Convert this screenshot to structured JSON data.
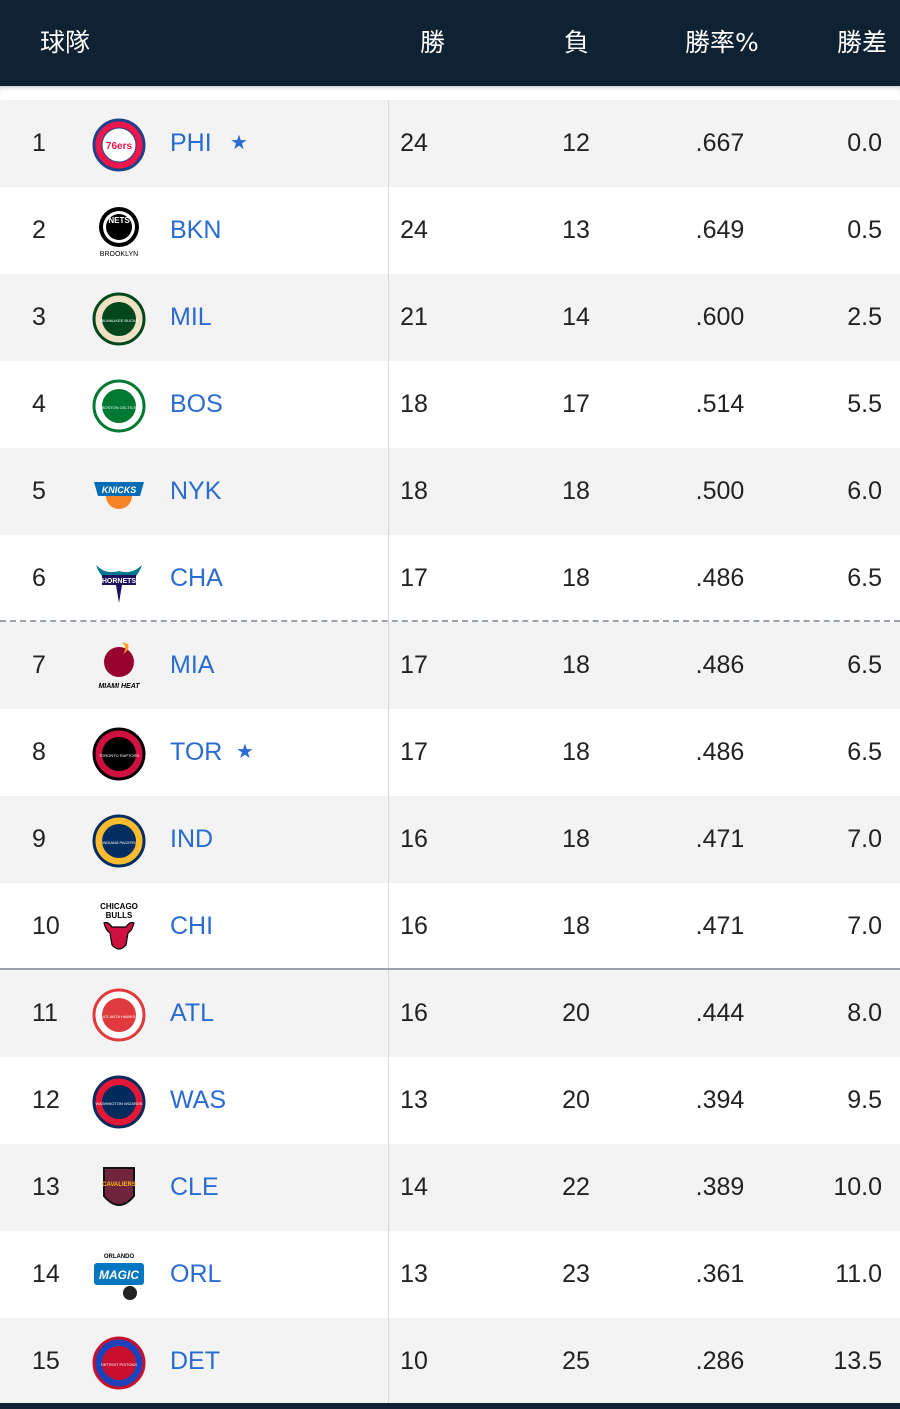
{
  "header": {
    "team_label": "球隊",
    "wins_label": "勝",
    "losses_label": "負",
    "pct_label": "勝率%",
    "gb_label": "勝差"
  },
  "colors": {
    "header_bg": "#0f2233",
    "link_blue": "#2a6bd1",
    "alt_row": "#f3f3f3"
  },
  "teams": [
    {
      "rank": "1",
      "abbr": "PHI",
      "star": true,
      "w": "24",
      "l": "12",
      "pct": ".667",
      "gb": "0.0",
      "logo": "philadelphia-76ers-logo",
      "logo_colors": [
        "#1d428a",
        "#ed174c"
      ],
      "logo_text": "76ers"
    },
    {
      "rank": "2",
      "abbr": "BKN",
      "star": false,
      "w": "24",
      "l": "13",
      "pct": ".649",
      "gb": "0.5",
      "logo": "brooklyn-nets-logo",
      "logo_colors": [
        "#000000",
        "#ffffff"
      ],
      "logo_text": "NETS",
      "logo_subtext": "BROOKLYN"
    },
    {
      "rank": "3",
      "abbr": "MIL",
      "star": false,
      "w": "21",
      "l": "14",
      "pct": ".600",
      "gb": "2.5",
      "logo": "milwaukee-bucks-logo",
      "logo_colors": [
        "#00471b",
        "#eee1c6"
      ],
      "logo_text": "MILWAUKEE BUCKS"
    },
    {
      "rank": "4",
      "abbr": "BOS",
      "star": false,
      "w": "18",
      "l": "17",
      "pct": ".514",
      "gb": "5.5",
      "logo": "boston-celtics-logo",
      "logo_colors": [
        "#007a33",
        "#ffffff"
      ],
      "logo_text": "BOSTON CELTICS"
    },
    {
      "rank": "5",
      "abbr": "NYK",
      "star": false,
      "w": "18",
      "l": "18",
      "pct": ".500",
      "gb": "6.0",
      "logo": "new-york-knicks-logo",
      "logo_colors": [
        "#006bb6",
        "#f58426"
      ],
      "logo_text": "KNICKS"
    },
    {
      "rank": "6",
      "abbr": "CHA",
      "star": false,
      "w": "17",
      "l": "18",
      "pct": ".486",
      "gb": "6.5",
      "logo": "charlotte-hornets-logo",
      "logo_colors": [
        "#1d1160",
        "#00788c"
      ],
      "logo_text": "HORNETS"
    },
    {
      "rank": "7",
      "abbr": "MIA",
      "star": false,
      "w": "17",
      "l": "18",
      "pct": ".486",
      "gb": "6.5",
      "logo": "miami-heat-logo",
      "logo_colors": [
        "#98002e",
        "#f9a01b"
      ],
      "logo_text": "MIAMI HEAT"
    },
    {
      "rank": "8",
      "abbr": "TOR",
      "star": true,
      "w": "17",
      "l": "18",
      "pct": ".486",
      "gb": "6.5",
      "logo": "toronto-raptors-logo",
      "logo_colors": [
        "#000000",
        "#ce1141"
      ],
      "logo_text": "TORONTO RAPTORS"
    },
    {
      "rank": "9",
      "abbr": "IND",
      "star": false,
      "w": "16",
      "l": "18",
      "pct": ".471",
      "gb": "7.0",
      "logo": "indiana-pacers-logo",
      "logo_colors": [
        "#002d62",
        "#fdbb30"
      ],
      "logo_text": "INDIANA PACERS"
    },
    {
      "rank": "10",
      "abbr": "CHI",
      "star": false,
      "w": "16",
      "l": "18",
      "pct": ".471",
      "gb": "7.0",
      "logo": "chicago-bulls-logo",
      "logo_colors": [
        "#ce1141",
        "#000000"
      ],
      "logo_text": "CHICAGO",
      "logo_subtext": "BULLS"
    },
    {
      "rank": "11",
      "abbr": "ATL",
      "star": false,
      "w": "16",
      "l": "20",
      "pct": ".444",
      "gb": "8.0",
      "logo": "atlanta-hawks-logo",
      "logo_colors": [
        "#e03a3e",
        "#ffffff"
      ],
      "logo_text": "ATLANTA HAWKS"
    },
    {
      "rank": "12",
      "abbr": "WAS",
      "star": false,
      "w": "13",
      "l": "20",
      "pct": ".394",
      "gb": "9.5",
      "logo": "washington-wizards-logo",
      "logo_colors": [
        "#002b5c",
        "#e31837"
      ],
      "logo_text": "WASHINGTON WIZARDS"
    },
    {
      "rank": "13",
      "abbr": "CLE",
      "star": false,
      "w": "14",
      "l": "22",
      "pct": ".389",
      "gb": "10.0",
      "logo": "cleveland-cavaliers-logo",
      "logo_colors": [
        "#6f263d",
        "#ffb81c"
      ],
      "logo_text": "CAVALIERS"
    },
    {
      "rank": "14",
      "abbr": "ORL",
      "star": false,
      "w": "13",
      "l": "23",
      "pct": ".361",
      "gb": "11.0",
      "logo": "orlando-magic-logo",
      "logo_colors": [
        "#0077c0",
        "#000000"
      ],
      "logo_text": "MAGIC",
      "logo_subtext": "ORLANDO"
    },
    {
      "rank": "15",
      "abbr": "DET",
      "star": false,
      "w": "10",
      "l": "25",
      "pct": ".286",
      "gb": "13.5",
      "logo": "detroit-pistons-logo",
      "logo_colors": [
        "#c8102e",
        "#1d42ba"
      ],
      "logo_text": "DETROIT PISTONS"
    }
  ]
}
